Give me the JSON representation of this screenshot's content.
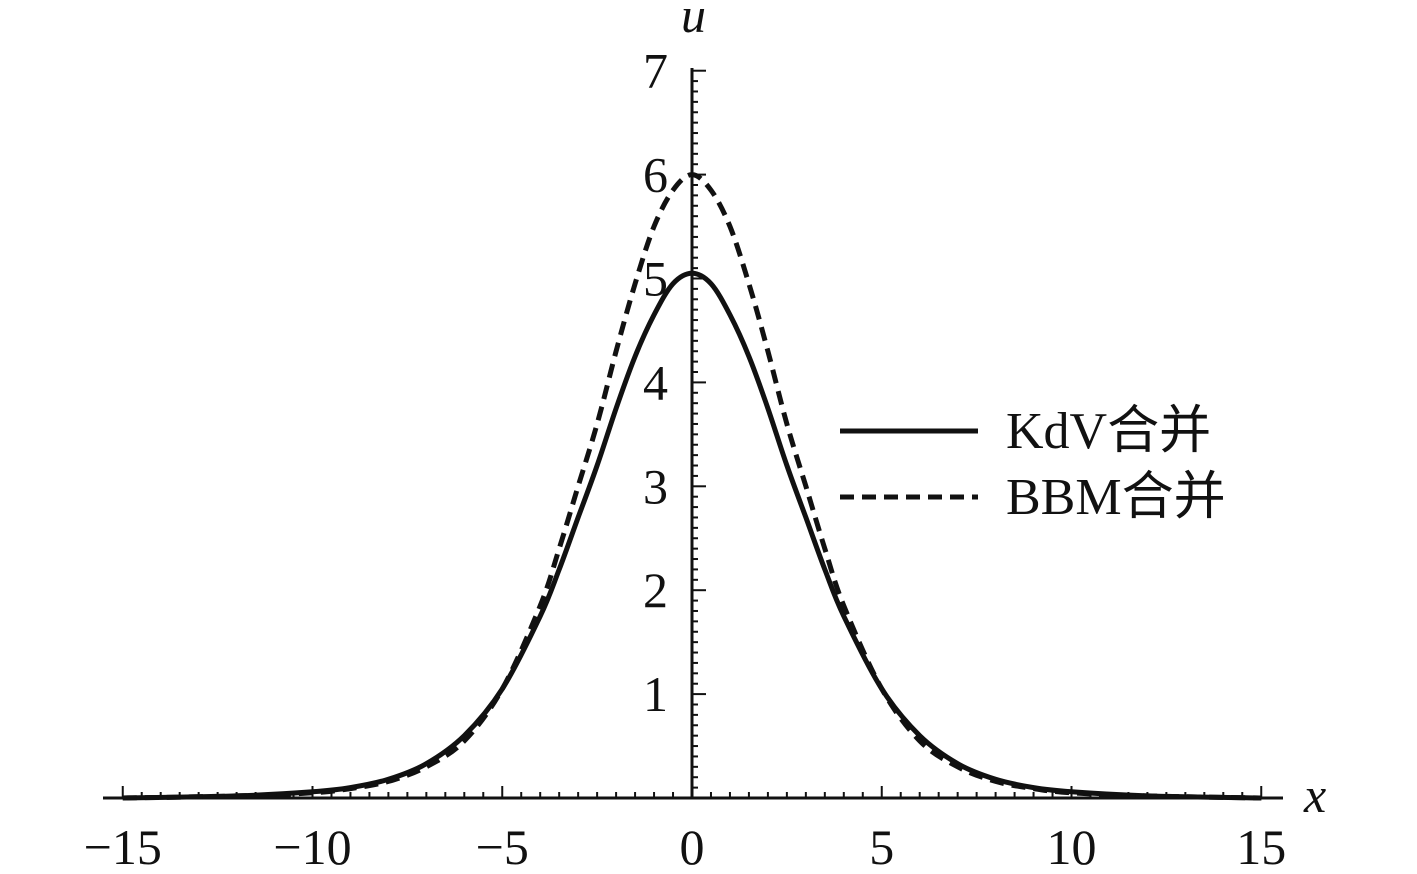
{
  "chart_data": {
    "type": "line",
    "title": "",
    "xlabel": "x",
    "ylabel": "u",
    "xlim": [
      -15,
      15
    ],
    "ylim": [
      0,
      7
    ],
    "x_ticks": [
      -15,
      -10,
      -5,
      0,
      5,
      10,
      15
    ],
    "x_tick_labels": [
      "−15",
      "−10",
      "−5",
      "0",
      "5",
      "10",
      "15"
    ],
    "y_ticks": [
      1,
      2,
      3,
      4,
      5,
      6,
      7
    ],
    "y_tick_labels": [
      "1",
      "2",
      "3",
      "4",
      "5",
      "6",
      "7"
    ],
    "grid": false,
    "legend_position": "right",
    "series": [
      {
        "name": "KdV合并",
        "style": "solid",
        "color": "#111111",
        "x": [
          -15,
          -12,
          -10,
          -9,
          -8,
          -7,
          -6,
          -5,
          -4,
          -3.5,
          -3,
          -2.5,
          -2,
          -1.5,
          -1,
          -0.5,
          0,
          0.5,
          1,
          1.5,
          2,
          2.5,
          3,
          3.5,
          4,
          5,
          6,
          7,
          8,
          9,
          10,
          12,
          15
        ],
        "y": [
          0.0,
          0.02,
          0.06,
          0.1,
          0.18,
          0.33,
          0.6,
          1.05,
          1.75,
          2.2,
          2.7,
          3.2,
          3.75,
          4.25,
          4.65,
          4.95,
          5.05,
          4.95,
          4.65,
          4.25,
          3.75,
          3.2,
          2.7,
          2.2,
          1.75,
          1.05,
          0.6,
          0.33,
          0.18,
          0.1,
          0.06,
          0.02,
          0.0
        ]
      },
      {
        "name": "BBM合并",
        "style": "dashed",
        "color": "#111111",
        "x": [
          -15,
          -12,
          -10,
          -9,
          -8,
          -7,
          -6,
          -5,
          -4,
          -3.5,
          -3,
          -2.5,
          -2,
          -1.5,
          -1,
          -0.5,
          0,
          0.5,
          1,
          1.5,
          2,
          2.5,
          3,
          3.5,
          4,
          5,
          6,
          7,
          8,
          9,
          10,
          12,
          15
        ],
        "y": [
          0.0,
          0.02,
          0.05,
          0.09,
          0.16,
          0.3,
          0.55,
          1.05,
          1.85,
          2.4,
          3.0,
          3.6,
          4.3,
          4.95,
          5.5,
          5.85,
          6.0,
          5.85,
          5.5,
          4.95,
          4.3,
          3.6,
          3.0,
          2.4,
          1.85,
          1.05,
          0.55,
          0.3,
          0.16,
          0.09,
          0.05,
          0.02,
          0.0
        ]
      }
    ]
  }
}
